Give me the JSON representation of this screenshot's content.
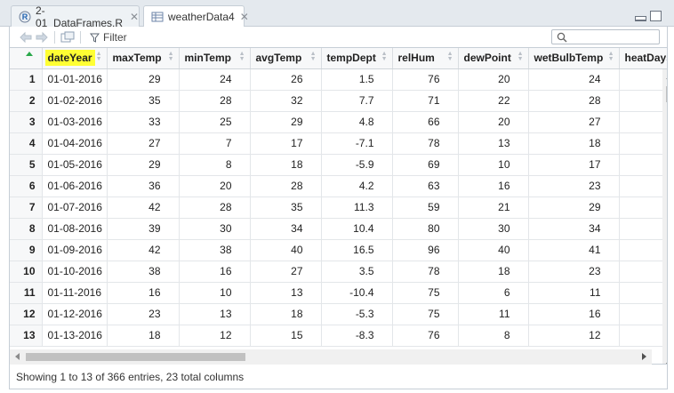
{
  "tabs": [
    {
      "label": "2-01_DataFrames.R",
      "icon": "r-script-icon",
      "active": false
    },
    {
      "label": "weatherData4",
      "icon": "table-icon",
      "active": true
    }
  ],
  "toolbar": {
    "filter_label": "Filter",
    "search_placeholder": ""
  },
  "table": {
    "columns": [
      "dateYear",
      "maxTemp",
      "minTemp",
      "avgTemp",
      "tempDept",
      "relHum",
      "dewPoint",
      "wetBulbTemp",
      "heatDays"
    ],
    "rows": [
      {
        "n": "1",
        "cells": [
          "01-01-2016",
          "29",
          "24",
          "26",
          "1.5",
          "76",
          "20",
          "24",
          ""
        ]
      },
      {
        "n": "2",
        "cells": [
          "01-02-2016",
          "35",
          "28",
          "32",
          "7.7",
          "71",
          "22",
          "28",
          ""
        ]
      },
      {
        "n": "3",
        "cells": [
          "01-03-2016",
          "33",
          "25",
          "29",
          "4.8",
          "66",
          "20",
          "27",
          ""
        ]
      },
      {
        "n": "4",
        "cells": [
          "01-04-2016",
          "27",
          "7",
          "17",
          "-7.1",
          "78",
          "13",
          "18",
          ""
        ]
      },
      {
        "n": "5",
        "cells": [
          "01-05-2016",
          "29",
          "8",
          "18",
          "-5.9",
          "69",
          "10",
          "17",
          ""
        ]
      },
      {
        "n": "6",
        "cells": [
          "01-06-2016",
          "36",
          "20",
          "28",
          "4.2",
          "63",
          "16",
          "23",
          ""
        ]
      },
      {
        "n": "7",
        "cells": [
          "01-07-2016",
          "42",
          "28",
          "35",
          "11.3",
          "59",
          "21",
          "29",
          ""
        ]
      },
      {
        "n": "8",
        "cells": [
          "01-08-2016",
          "39",
          "30",
          "34",
          "10.4",
          "80",
          "30",
          "34",
          ""
        ]
      },
      {
        "n": "9",
        "cells": [
          "01-09-2016",
          "42",
          "38",
          "40",
          "16.5",
          "96",
          "40",
          "41",
          ""
        ]
      },
      {
        "n": "10",
        "cells": [
          "01-10-2016",
          "38",
          "16",
          "27",
          "3.5",
          "78",
          "18",
          "23",
          ""
        ]
      },
      {
        "n": "11",
        "cells": [
          "01-11-2016",
          "16",
          "10",
          "13",
          "-10.4",
          "75",
          "6",
          "11",
          ""
        ]
      },
      {
        "n": "12",
        "cells": [
          "01-12-2016",
          "23",
          "13",
          "18",
          "-5.3",
          "75",
          "11",
          "16",
          ""
        ]
      },
      {
        "n": "13",
        "cells": [
          "01-13-2016",
          "18",
          "12",
          "15",
          "-8.3",
          "76",
          "8",
          "12",
          ""
        ]
      }
    ]
  },
  "status": {
    "text": "Showing 1 to 13 of 366 entries, 23 total columns"
  },
  "colors": {
    "highlight": "#ffff33",
    "sort_indicator": "#2aa84a"
  }
}
